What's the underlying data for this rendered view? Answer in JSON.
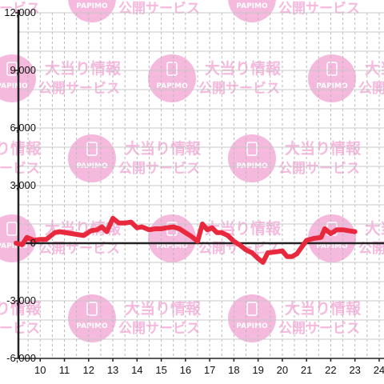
{
  "chart_data": {
    "type": "line",
    "title": "",
    "xlabel": "",
    "ylabel": "",
    "xlim": [
      9,
      24.2
    ],
    "ylim": [
      -6000,
      12000
    ],
    "x_ticks": [
      10,
      11,
      12,
      13,
      14,
      15,
      16,
      17,
      18,
      19,
      20,
      21,
      22,
      23,
      24
    ],
    "y_ticks": [
      -6000,
      -3000,
      0,
      3000,
      6000,
      9000,
      12000
    ],
    "x_tick_labels": [
      "10",
      "11",
      "12",
      "13",
      "14",
      "15",
      "16",
      "17",
      "18",
      "19",
      "20",
      "21",
      "22",
      "23",
      "24"
    ],
    "y_tick_labels": [
      "-6,000",
      "-3,000",
      "0",
      "3,000",
      "6,000",
      "9,000",
      "12,000"
    ],
    "grid": true,
    "legend": "none",
    "series": [
      {
        "color": "#e8283c",
        "points": [
          [
            9.0,
            0
          ],
          [
            9.25,
            -80
          ],
          [
            9.45,
            300
          ],
          [
            9.75,
            150
          ],
          [
            10.0,
            200
          ],
          [
            10.25,
            200
          ],
          [
            10.6,
            550
          ],
          [
            10.8,
            600
          ],
          [
            11.3,
            500
          ],
          [
            11.8,
            400
          ],
          [
            12.1,
            650
          ],
          [
            12.35,
            700
          ],
          [
            12.55,
            850
          ],
          [
            12.75,
            600
          ],
          [
            13.0,
            1300
          ],
          [
            13.25,
            1050
          ],
          [
            13.5,
            1050
          ],
          [
            13.75,
            1100
          ],
          [
            14.0,
            800
          ],
          [
            14.2,
            850
          ],
          [
            14.5,
            700
          ],
          [
            14.75,
            750
          ],
          [
            15.0,
            750
          ],
          [
            15.2,
            800
          ],
          [
            15.5,
            850
          ],
          [
            15.75,
            750
          ],
          [
            16.0,
            550
          ],
          [
            16.25,
            350
          ],
          [
            16.5,
            100
          ],
          [
            16.7,
            1000
          ],
          [
            16.9,
            700
          ],
          [
            17.1,
            800
          ],
          [
            17.3,
            550
          ],
          [
            17.5,
            550
          ],
          [
            17.75,
            400
          ],
          [
            18.0,
            100
          ],
          [
            18.25,
            -100
          ],
          [
            18.5,
            -350
          ],
          [
            18.75,
            -500
          ],
          [
            19.0,
            -800
          ],
          [
            19.2,
            -1000
          ],
          [
            19.4,
            -500
          ],
          [
            19.75,
            -450
          ],
          [
            20.0,
            -400
          ],
          [
            20.2,
            -700
          ],
          [
            20.4,
            -700
          ],
          [
            20.6,
            -550
          ],
          [
            21.0,
            150
          ],
          [
            21.3,
            250
          ],
          [
            21.6,
            300
          ],
          [
            21.75,
            750
          ],
          [
            22.0,
            500
          ],
          [
            22.25,
            700
          ],
          [
            22.5,
            700
          ],
          [
            22.75,
            650
          ],
          [
            23.0,
            600
          ]
        ]
      }
    ]
  },
  "watermark": {
    "line1": "大当り情報",
    "line2": "公開サービス",
    "logo": "PAPIMO",
    "color": "#f6b9de"
  }
}
